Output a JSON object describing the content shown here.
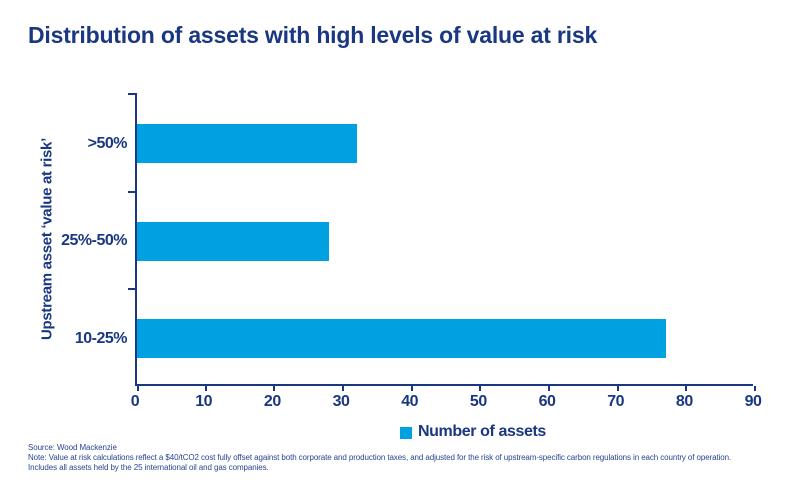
{
  "title": "Distribution of assets with high levels of value at risk",
  "colors": {
    "navy_text": "#1A3881",
    "bar_cyan": "#00A1E0",
    "background": "#FFFFFF"
  },
  "chart_data": {
    "type": "bar",
    "orientation": "horizontal",
    "title": "Distribution of assets with high levels of value at risk",
    "categories": [
      ">50%",
      "25%-50%",
      "10-25%"
    ],
    "values": [
      32,
      28,
      77
    ],
    "series_name": "Number of assets",
    "ylabel": "Upstream asset ‘value at risk’",
    "xlabel": "Number of assets",
    "xlim": [
      0,
      90
    ],
    "x_ticks": [
      0,
      10,
      20,
      30,
      40,
      50,
      60,
      70,
      80,
      90
    ],
    "grid": false,
    "bar_color": "#00A1E0",
    "legend_position": "bottom-center",
    "legend_entries": [
      "Number of assets"
    ]
  },
  "legend": {
    "label": "Number of assets"
  },
  "y_axis_title": "Upstream asset ‘value at risk’",
  "footer": {
    "line1": "Source: Wood Mackenzie",
    "line2": "Note: Value at risk calculations reflect a $40/tCO2 cost fully offset against both corporate and production taxes, and adjusted for the risk of upstream-specific carbon regulations in each country of operation.",
    "line3": "Includes all assets held by the 25 international oil and gas companies."
  }
}
